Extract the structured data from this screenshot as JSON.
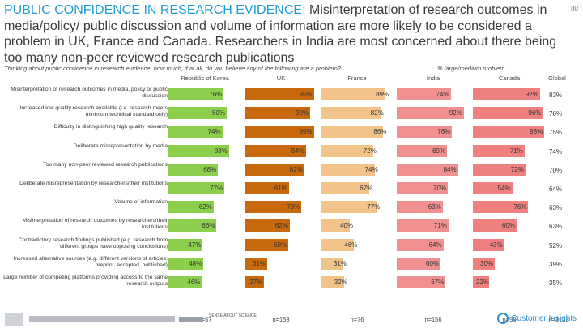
{
  "page_number": "80",
  "title_accent": "PUBLIC CONFIDENCE IN RESEARCH EVIDENCE:",
  "title_rest": " Misinterpretation of research outcomes in media/policy/ public discussion and volume of information are more likely to be considered a problem in UK, France and Canada. Researchers in India are most concerned about there being too many non-peer reviewed research publications",
  "question": "Thinking about public confidence in research evidence, how much, if at all, do you believe any of the following are a problem?",
  "legend_note": "% large/medium problem",
  "footer": {
    "logo_left_text": "SENSE ABOUT SCIENCE",
    "logo_right_text": "Customer Insights"
  },
  "colors": {
    "Republic of Korea": "#8ccf4d",
    "UK": "#c8690e",
    "France": "#f2c48a",
    "India": "#f09090",
    "Canada": "#f08080"
  },
  "chart_data": {
    "type": "bar",
    "orientation": "horizontal",
    "title": "Thinking about public confidence in research evidence, how much, if at all, do you believe any of the following are a problem?",
    "unit": "% large/medium problem",
    "categories": [
      "Misinterpretation of research outcomes in media, policy or public discussion",
      "Increased low quality research available (i.e. research meets minimum technical standard only)",
      "Difficulty in distinguishing high quality research",
      "Deliberate misrepresentation by media",
      "Too many non-peer reviewed research publications",
      "Deliberate misrepresentation by researchers/their institutions",
      "Volume of information",
      "Misinterpretation of research outcomes by researchers/their institutions",
      "Contradictory research findings published (e.g. research from different groups have opposing conclusions)",
      "Increased alternative sources (e.g. different versions of articles: preprint, accepted, published)",
      "Large number of competing platforms providing access to the same research outputs"
    ],
    "series": [
      {
        "name": "Republic of Korea",
        "n": "n=67",
        "values": [
          76,
          80,
          74,
          83,
          68,
          77,
          62,
          66,
          47,
          48,
          46
        ]
      },
      {
        "name": "UK",
        "n": "n=153",
        "values": [
          95,
          90,
          95,
          84,
          82,
          61,
          78,
          62,
          60,
          31,
          27
        ]
      },
      {
        "name": "France",
        "n": "n=76",
        "values": [
          89,
          82,
          86,
          72,
          74,
          67,
          77,
          40,
          46,
          31,
          32
        ]
      },
      {
        "name": "India",
        "n": "n=156",
        "values": [
          74,
          92,
          76,
          69,
          84,
          70,
          63,
          71,
          64,
          60,
          67
        ]
      },
      {
        "name": "Canada",
        "n": "n=98",
        "values": [
          92,
          96,
          98,
          71,
          72,
          54,
          76,
          60,
          43,
          30,
          22
        ]
      }
    ],
    "global": {
      "name": "Global",
      "n": "n=3133",
      "values": [
        83,
        76,
        75,
        74,
        70,
        64,
        63,
        63,
        52,
        39,
        35
      ]
    },
    "xlim": [
      0,
      100
    ]
  }
}
